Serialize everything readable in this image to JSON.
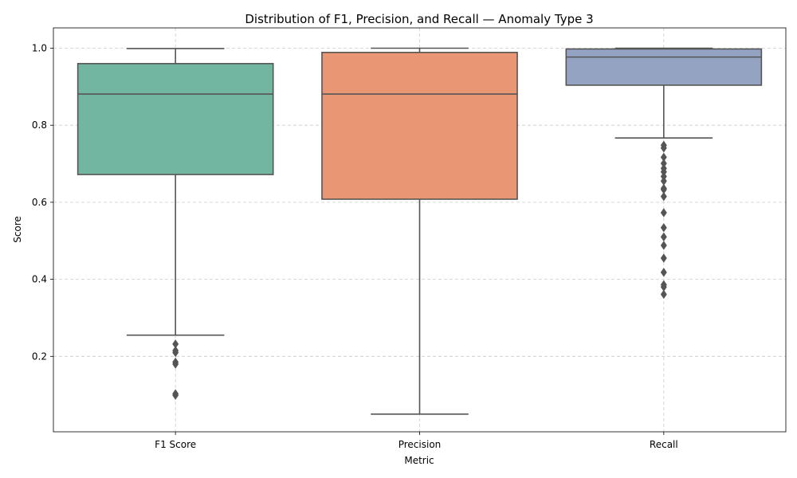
{
  "chart_data": {
    "type": "box",
    "title": "Distribution of F1, Precision, and Recall — Anomaly Type 3",
    "xlabel": "Metric",
    "ylabel": "Score",
    "ylim": [
      0.0,
      1.05
    ],
    "yticks": [
      0.2,
      0.4,
      0.6,
      0.8,
      1.0
    ],
    "ytick_labels": [
      "0.2",
      "0.4",
      "0.6",
      "0.8",
      "1.0"
    ],
    "grid": true,
    "categories": [
      "F1 Score",
      "Precision",
      "Recall"
    ],
    "boxes": [
      {
        "name": "F1 Score",
        "color": "#72b6a1",
        "whisker_low": 0.255,
        "q1": 0.672,
        "median": 0.881,
        "q3": 0.96,
        "whisker_high": 0.999,
        "outliers": [
          0.232,
          0.215,
          0.21,
          0.185,
          0.18,
          0.103,
          0.099
        ]
      },
      {
        "name": "Precision",
        "color": "#e99675",
        "whisker_low": 0.05,
        "q1": 0.608,
        "median": 0.881,
        "q3": 0.989,
        "whisker_high": 1.0,
        "outliers": []
      },
      {
        "name": "Recall",
        "color": "#95a3c3",
        "whisker_low": 0.767,
        "q1": 0.904,
        "median": 0.977,
        "q3": 0.998,
        "whisker_high": 1.0,
        "outliers": [
          0.748,
          0.741,
          0.717,
          0.701,
          0.688,
          0.679,
          0.667,
          0.655,
          0.636,
          0.633,
          0.615,
          0.573,
          0.534,
          0.51,
          0.488,
          0.455,
          0.418,
          0.386,
          0.38,
          0.361
        ]
      }
    ]
  }
}
